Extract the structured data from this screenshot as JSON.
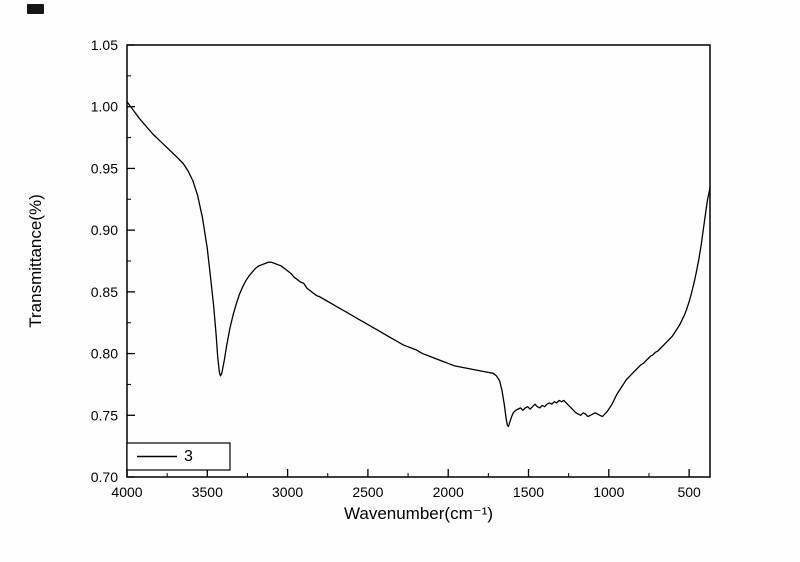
{
  "figure": {
    "background": "#fefefe",
    "axis_color": "#000000"
  },
  "chart_data": {
    "type": "line",
    "title": "",
    "xlabel": "Wavenumber(cm⁻¹)",
    "ylabel": "Transmittance(%)",
    "xlim": [
      4000,
      370
    ],
    "ylim": [
      0.7,
      1.05
    ],
    "grid": false,
    "x_ticks": [
      {
        "value": 4000,
        "label": "4000"
      },
      {
        "value": 3500,
        "label": "3500"
      },
      {
        "value": 3000,
        "label": "3000"
      },
      {
        "value": 2500,
        "label": "2500"
      },
      {
        "value": 2000,
        "label": "2000"
      },
      {
        "value": 1500,
        "label": "1500"
      },
      {
        "value": 1000,
        "label": "1000"
      },
      {
        "value": 500,
        "label": "500"
      }
    ],
    "x_minor_step": 250,
    "y_ticks": [
      {
        "value": 0.7,
        "label": "0.70"
      },
      {
        "value": 0.75,
        "label": "0.75"
      },
      {
        "value": 0.8,
        "label": "0.80"
      },
      {
        "value": 0.85,
        "label": "0.85"
      },
      {
        "value": 0.9,
        "label": "0.90"
      },
      {
        "value": 0.95,
        "label": "0.95"
      },
      {
        "value": 1.0,
        "label": "1.00"
      },
      {
        "value": 1.05,
        "label": "1.05"
      }
    ],
    "y_minor_step": 0.025,
    "legend": {
      "position": "bottom-left",
      "entries": [
        {
          "label": "3",
          "color": "#000000"
        }
      ]
    },
    "line_color": "#000000",
    "series": [
      {
        "name": "3",
        "points": [
          [
            4000,
            1.004
          ],
          [
            3960,
            0.997
          ],
          [
            3920,
            0.99
          ],
          [
            3880,
            0.984
          ],
          [
            3840,
            0.978
          ],
          [
            3800,
            0.973
          ],
          [
            3760,
            0.968
          ],
          [
            3720,
            0.963
          ],
          [
            3680,
            0.958
          ],
          [
            3650,
            0.954
          ],
          [
            3620,
            0.948
          ],
          [
            3590,
            0.94
          ],
          [
            3560,
            0.928
          ],
          [
            3530,
            0.91
          ],
          [
            3500,
            0.885
          ],
          [
            3480,
            0.862
          ],
          [
            3460,
            0.838
          ],
          [
            3445,
            0.815
          ],
          [
            3435,
            0.797
          ],
          [
            3425,
            0.785
          ],
          [
            3418,
            0.782
          ],
          [
            3410,
            0.784
          ],
          [
            3395,
            0.794
          ],
          [
            3380,
            0.806
          ],
          [
            3360,
            0.82
          ],
          [
            3340,
            0.831
          ],
          [
            3320,
            0.84
          ],
          [
            3300,
            0.848
          ],
          [
            3280,
            0.854
          ],
          [
            3260,
            0.859
          ],
          [
            3240,
            0.863
          ],
          [
            3220,
            0.866
          ],
          [
            3200,
            0.869
          ],
          [
            3180,
            0.871
          ],
          [
            3160,
            0.872
          ],
          [
            3140,
            0.873
          ],
          [
            3120,
            0.874
          ],
          [
            3100,
            0.874
          ],
          [
            3080,
            0.873
          ],
          [
            3060,
            0.872
          ],
          [
            3040,
            0.871
          ],
          [
            3020,
            0.869
          ],
          [
            3000,
            0.867
          ],
          [
            2980,
            0.865
          ],
          [
            2960,
            0.862
          ],
          [
            2940,
            0.86
          ],
          [
            2920,
            0.858
          ],
          [
            2900,
            0.857
          ],
          [
            2880,
            0.853
          ],
          [
            2860,
            0.851
          ],
          [
            2840,
            0.849
          ],
          [
            2820,
            0.847
          ],
          [
            2800,
            0.846
          ],
          [
            2760,
            0.843
          ],
          [
            2720,
            0.84
          ],
          [
            2680,
            0.837
          ],
          [
            2640,
            0.834
          ],
          [
            2600,
            0.831
          ],
          [
            2560,
            0.828
          ],
          [
            2520,
            0.825
          ],
          [
            2480,
            0.822
          ],
          [
            2440,
            0.819
          ],
          [
            2400,
            0.816
          ],
          [
            2360,
            0.813
          ],
          [
            2320,
            0.81
          ],
          [
            2280,
            0.807
          ],
          [
            2240,
            0.805
          ],
          [
            2200,
            0.803
          ],
          [
            2160,
            0.8
          ],
          [
            2120,
            0.798
          ],
          [
            2080,
            0.796
          ],
          [
            2040,
            0.794
          ],
          [
            2000,
            0.792
          ],
          [
            1960,
            0.79
          ],
          [
            1920,
            0.789
          ],
          [
            1880,
            0.788
          ],
          [
            1840,
            0.787
          ],
          [
            1800,
            0.786
          ],
          [
            1760,
            0.785
          ],
          [
            1720,
            0.784
          ],
          [
            1700,
            0.782
          ],
          [
            1680,
            0.778
          ],
          [
            1665,
            0.77
          ],
          [
            1650,
            0.758
          ],
          [
            1640,
            0.748
          ],
          [
            1632,
            0.742
          ],
          [
            1625,
            0.741
          ],
          [
            1615,
            0.745
          ],
          [
            1605,
            0.749
          ],
          [
            1595,
            0.752
          ],
          [
            1580,
            0.754
          ],
          [
            1565,
            0.755
          ],
          [
            1550,
            0.756
          ],
          [
            1535,
            0.754
          ],
          [
            1520,
            0.756
          ],
          [
            1505,
            0.757
          ],
          [
            1490,
            0.755
          ],
          [
            1475,
            0.757
          ],
          [
            1460,
            0.759
          ],
          [
            1445,
            0.757
          ],
          [
            1430,
            0.756
          ],
          [
            1415,
            0.758
          ],
          [
            1400,
            0.757
          ],
          [
            1385,
            0.759
          ],
          [
            1370,
            0.76
          ],
          [
            1355,
            0.759
          ],
          [
            1340,
            0.761
          ],
          [
            1325,
            0.76
          ],
          [
            1310,
            0.762
          ],
          [
            1295,
            0.761
          ],
          [
            1280,
            0.762
          ],
          [
            1265,
            0.76
          ],
          [
            1250,
            0.758
          ],
          [
            1235,
            0.756
          ],
          [
            1220,
            0.754
          ],
          [
            1205,
            0.752
          ],
          [
            1190,
            0.751
          ],
          [
            1175,
            0.75
          ],
          [
            1160,
            0.752
          ],
          [
            1145,
            0.751
          ],
          [
            1130,
            0.749
          ],
          [
            1115,
            0.75
          ],
          [
            1100,
            0.751
          ],
          [
            1085,
            0.752
          ],
          [
            1070,
            0.751
          ],
          [
            1055,
            0.75
          ],
          [
            1040,
            0.749
          ],
          [
            1025,
            0.751
          ],
          [
            1010,
            0.753
          ],
          [
            995,
            0.756
          ],
          [
            980,
            0.759
          ],
          [
            965,
            0.763
          ],
          [
            950,
            0.767
          ],
          [
            935,
            0.77
          ],
          [
            920,
            0.773
          ],
          [
            905,
            0.776
          ],
          [
            890,
            0.779
          ],
          [
            875,
            0.781
          ],
          [
            860,
            0.783
          ],
          [
            845,
            0.785
          ],
          [
            830,
            0.787
          ],
          [
            815,
            0.789
          ],
          [
            800,
            0.791
          ],
          [
            785,
            0.792
          ],
          [
            770,
            0.794
          ],
          [
            755,
            0.796
          ],
          [
            740,
            0.798
          ],
          [
            725,
            0.799
          ],
          [
            710,
            0.801
          ],
          [
            695,
            0.802
          ],
          [
            680,
            0.804
          ],
          [
            665,
            0.806
          ],
          [
            650,
            0.808
          ],
          [
            635,
            0.81
          ],
          [
            620,
            0.812
          ],
          [
            605,
            0.814
          ],
          [
            590,
            0.817
          ],
          [
            575,
            0.82
          ],
          [
            560,
            0.823
          ],
          [
            545,
            0.827
          ],
          [
            530,
            0.831
          ],
          [
            515,
            0.836
          ],
          [
            500,
            0.842
          ],
          [
            485,
            0.849
          ],
          [
            470,
            0.857
          ],
          [
            455,
            0.866
          ],
          [
            440,
            0.876
          ],
          [
            425,
            0.888
          ],
          [
            410,
            0.902
          ],
          [
            395,
            0.916
          ],
          [
            385,
            0.925
          ],
          [
            375,
            0.931
          ],
          [
            370,
            0.935
          ]
        ]
      }
    ]
  }
}
